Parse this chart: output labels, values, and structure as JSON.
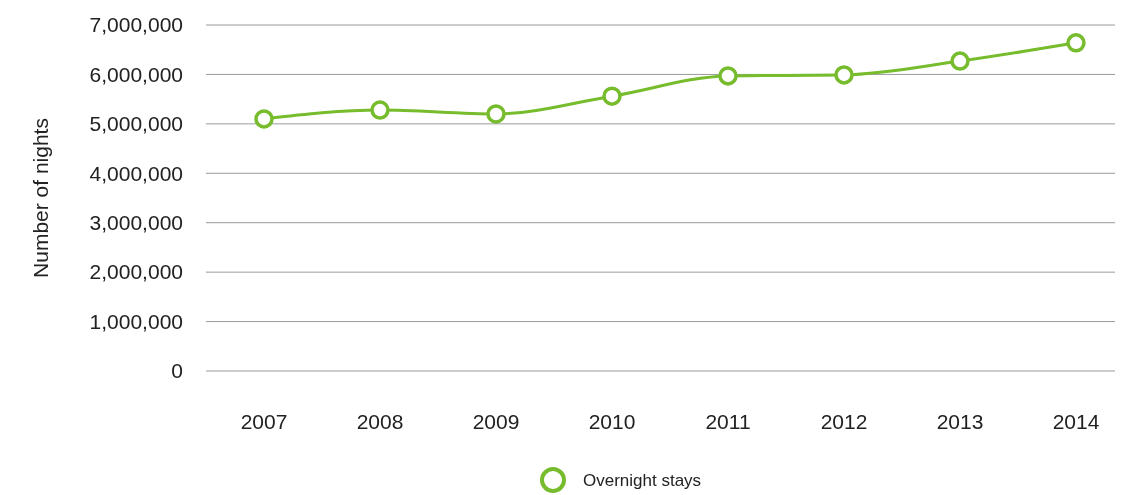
{
  "chart_data": {
    "type": "line",
    "ylabel": "Number of nights",
    "categories": [
      "2007",
      "2008",
      "2009",
      "2010",
      "2011",
      "2012",
      "2013",
      "2014"
    ],
    "series": [
      {
        "name": "Overnight stays",
        "color": "#76bc2c",
        "values": [
          5100000,
          5280000,
          5200000,
          5560000,
          5970000,
          5990000,
          6270000,
          6640000
        ]
      }
    ],
    "ylim": [
      0,
      7000000
    ],
    "yticks": [
      {
        "value": 0,
        "label": "0"
      },
      {
        "value": 1000000,
        "label": "1,000,000"
      },
      {
        "value": 2000000,
        "label": "2,000,000"
      },
      {
        "value": 3000000,
        "label": "3,000,000"
      },
      {
        "value": 4000000,
        "label": "4,000,000"
      },
      {
        "value": 5000000,
        "label": "5,000,000"
      },
      {
        "value": 6000000,
        "label": "6,000,000"
      },
      {
        "value": 7000000,
        "label": "7,000,000"
      }
    ],
    "grid": "y",
    "legend": "bottom",
    "marker": "circle",
    "line_style": "solid"
  }
}
